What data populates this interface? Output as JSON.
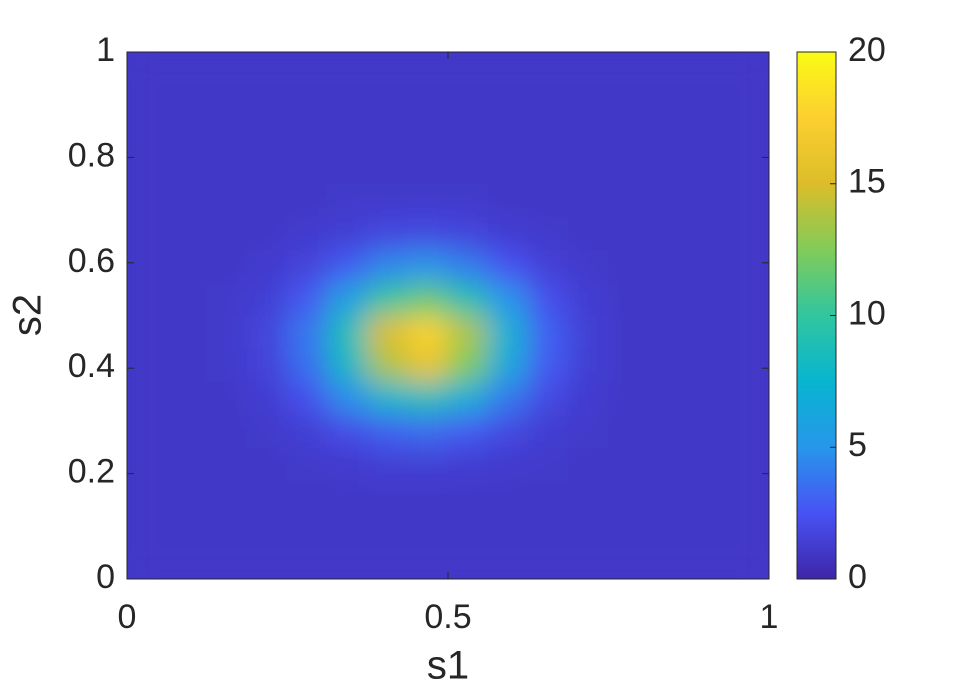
{
  "chart_data": {
    "type": "heatmap",
    "colormap": "parula",
    "xlabel": "s1",
    "ylabel": "s2",
    "xlim": [
      0,
      1
    ],
    "ylim": [
      0,
      1
    ],
    "xticks": [
      0,
      0.5,
      1
    ],
    "yticks": [
      0,
      0.2,
      0.4,
      0.6,
      0.8,
      1
    ],
    "clim": [
      0,
      20
    ],
    "cticks": [
      0,
      5,
      10,
      15,
      20
    ],
    "x": [
      0.03125,
      0.09375,
      0.15625,
      0.21875,
      0.28125,
      0.34375,
      0.40625,
      0.46875,
      0.53125,
      0.59375,
      0.65625,
      0.71875,
      0.78125,
      0.84375,
      0.90625,
      0.96875
    ],
    "y": [
      0.03125,
      0.09375,
      0.15625,
      0.21875,
      0.28125,
      0.34375,
      0.40625,
      0.46875,
      0.53125,
      0.59375,
      0.65625,
      0.71875,
      0.78125,
      0.84375,
      0.90625,
      0.96875
    ],
    "z": [
      [
        1,
        1,
        1,
        1,
        1,
        1,
        1,
        1,
        1,
        1,
        1,
        1,
        1,
        1,
        1,
        1
      ],
      [
        1,
        1,
        1,
        1,
        1,
        1,
        1,
        1,
        1,
        1,
        1,
        1,
        1,
        1,
        1,
        1
      ],
      [
        1,
        1,
        1,
        1,
        1,
        1,
        1,
        1,
        1,
        1,
        1,
        1,
        1,
        1,
        1,
        1
      ],
      [
        1,
        1,
        1,
        1,
        1.1,
        1.2,
        1.4,
        1.4,
        1.3,
        1.2,
        1.1,
        1,
        1,
        1,
        1,
        1
      ],
      [
        1,
        1,
        1,
        1.1,
        1.4,
        2.1,
        3,
        3.4,
        2.8,
        1.9,
        1.3,
        1.1,
        1,
        1,
        1,
        1
      ],
      [
        1,
        1,
        1,
        1.3,
        2.3,
        4.7,
        7.6,
        8.8,
        6.9,
        3.9,
        1.9,
        1.2,
        1,
        1,
        1,
        1
      ],
      [
        1,
        1,
        1.1,
        1.6,
        3.6,
        8,
        13.7,
        16,
        12.4,
        6.5,
        2.8,
        1.4,
        1,
        1,
        1,
        1
      ],
      [
        1,
        1,
        1.1,
        1.7,
        3.9,
        8.8,
        15.2,
        17.7,
        13.7,
        7.2,
        3,
        1.4,
        1,
        1,
        1,
        1
      ],
      [
        1,
        1,
        1.1,
        1.4,
        2.8,
        6,
        10.1,
        11.7,
        9.1,
        5,
        2.3,
        1.3,
        1,
        1,
        1,
        1
      ],
      [
        1,
        1,
        1,
        1.2,
        1.7,
        2.9,
        4.5,
        5.1,
        4.1,
        2.5,
        1.5,
        1.1,
        1,
        1,
        1,
        1
      ],
      [
        1,
        1,
        1,
        1,
        1.2,
        1.4,
        1.8,
        1.9,
        1.7,
        1.3,
        1.1,
        1,
        1,
        1,
        1,
        1
      ],
      [
        1,
        1,
        1,
        1,
        1,
        1.1,
        1.1,
        1.1,
        1.1,
        1,
        1,
        1,
        1,
        1,
        1,
        1
      ],
      [
        1,
        1,
        1,
        1,
        1,
        1,
        1,
        1,
        1,
        1,
        1,
        1,
        1,
        1,
        1,
        1
      ],
      [
        1,
        1,
        1,
        1,
        1,
        1,
        1,
        1,
        1,
        1,
        1,
        1,
        1,
        1,
        1,
        1
      ],
      [
        1,
        1,
        1,
        1,
        1,
        1,
        1,
        1,
        1,
        1,
        1,
        1,
        1,
        1,
        1,
        1
      ],
      [
        1,
        1,
        1,
        1,
        1,
        1,
        1,
        1,
        1,
        1,
        1,
        1,
        1,
        1,
        1,
        1
      ]
    ]
  }
}
